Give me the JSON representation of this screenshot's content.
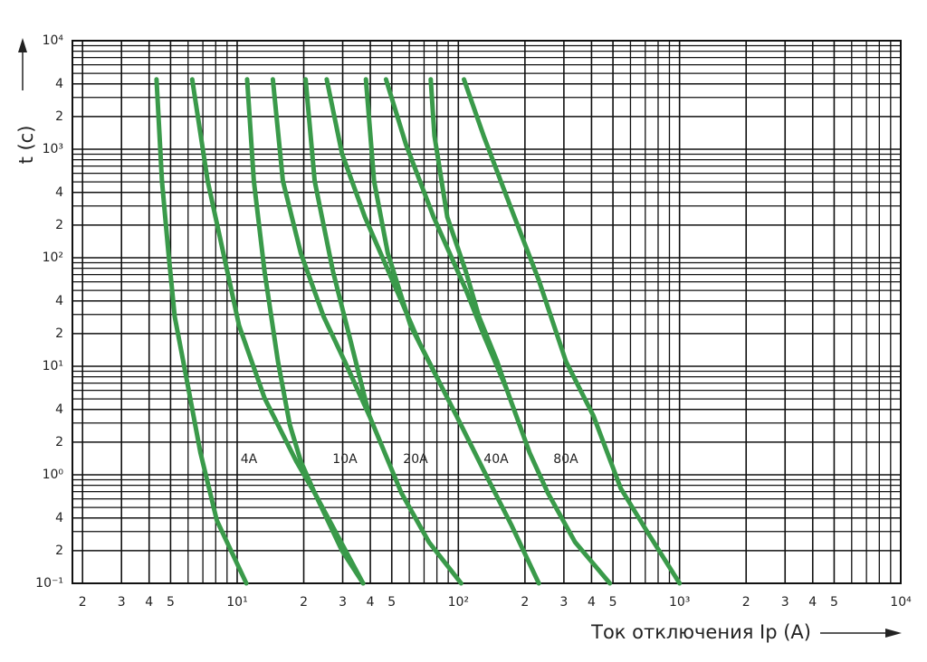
{
  "chart_data": {
    "type": "line",
    "xlabel": "Ток отключения Ip (A)",
    "ylabel": "t (c)",
    "xscale": "log",
    "yscale": "log",
    "grid": true,
    "xlim": [
      1.8,
      10000
    ],
    "ylim": [
      0.1,
      10000
    ],
    "xticks": [
      2,
      3,
      4,
      5,
      {
        "value": 10,
        "label": "10¹"
      },
      {
        "value": 20,
        "label": "2"
      },
      {
        "value": 30,
        "label": "3"
      },
      {
        "value": 40,
        "label": "4"
      },
      {
        "value": 50,
        "label": "5"
      },
      {
        "value": 100,
        "label": "10²"
      },
      {
        "value": 200,
        "label": "2"
      },
      {
        "value": 300,
        "label": "3"
      },
      {
        "value": 400,
        "label": "4"
      },
      {
        "value": 500,
        "label": "5"
      },
      {
        "value": 1000,
        "label": "10³"
      },
      {
        "value": 2000,
        "label": "2"
      },
      {
        "value": 3000,
        "label": "3"
      },
      {
        "value": 4000,
        "label": "4"
      },
      {
        "value": 5000,
        "label": "5"
      },
      {
        "value": 10000,
        "label": "10⁴"
      }
    ],
    "yticks": [
      {
        "value": 0.1,
        "label": "10⁻¹"
      },
      {
        "value": 0.2,
        "label": "2"
      },
      {
        "value": 0.4,
        "label": "4"
      },
      {
        "value": 1,
        "label": "10⁰"
      },
      2,
      4,
      {
        "value": 10,
        "label": "10¹"
      },
      {
        "value": 20,
        "label": "2"
      },
      {
        "value": 40,
        "label": "4"
      },
      {
        "value": 100,
        "label": "10²"
      },
      {
        "value": 200,
        "label": "2"
      },
      {
        "value": 400,
        "label": "4"
      },
      {
        "value": 1000,
        "label": "10³"
      },
      {
        "value": 2000,
        "label": "2"
      },
      {
        "value": 4000,
        "label": "4"
      },
      {
        "value": 10000,
        "label": "10⁴"
      }
    ],
    "annotations": [
      "4A",
      "10A",
      "20A",
      "40A",
      "80A"
    ],
    "series": [
      {
        "color": "#3a9a4a",
        "x": [
          4.32,
          4.57,
          4.89,
          5.22,
          5.92,
          6.82,
          8.09,
          11.0
        ],
        "values": [
          4400,
          510,
          110,
          28.7,
          7.5,
          1.6,
          0.38,
          0.1
        ]
      },
      {
        "color": "#3a9a4a",
        "x": [
          6.26,
          7.36,
          10.2,
          13.3,
          18.5,
          22.4,
          37.1
        ],
        "values": [
          4400,
          510,
          23.7,
          5.1,
          1.33,
          0.68,
          0.1
        ]
      },
      {
        "color": "#3a9a4a",
        "x": [
          11.1,
          11.9,
          13.3,
          15.3,
          17.3,
          19.4,
          22.4,
          29.8,
          37.1
        ],
        "values": [
          4400,
          510,
          75,
          11,
          2.9,
          1.33,
          0.68,
          0.2,
          0.1
        ]
      },
      {
        "color": "#3a9a4a",
        "x": [
          14.5,
          16.1,
          19.4,
          24.6,
          30.7,
          39.6,
          55.3,
          73.6,
          103
        ],
        "values": [
          4400,
          510,
          110,
          28.7,
          11,
          3.5,
          0.68,
          0.24,
          0.1
        ]
      },
      {
        "color": "#3a9a4a",
        "x": [
          20.4,
          22.4,
          27.1,
          32.8,
          37.8,
          39.6
        ],
        "values": [
          4400,
          510,
          75,
          16.2,
          5.1,
          3.5
        ]
      },
      {
        "color": "#3a9a4a",
        "x": [
          25.4,
          29.8,
          37.8,
          50.3,
          66.9,
          81,
          98,
          130,
          173,
          231
        ],
        "values": [
          4400,
          910,
          237,
          62,
          16.2,
          7.5,
          3.5,
          1.1,
          0.35,
          0.1
        ]
      },
      {
        "color": "#3a9a4a",
        "x": [
          38.2,
          41.6,
          48,
          60.8,
          73.6,
          81
        ],
        "values": [
          4400,
          510,
          110,
          23.7,
          11,
          7.5
        ]
      },
      {
        "color": "#3a9a4a",
        "x": [
          47.1,
          58,
          77.3,
          108,
          130,
          165,
          210,
          254,
          337,
          484
        ],
        "values": [
          4400,
          1100,
          237,
          51,
          19.6,
          6.2,
          1.6,
          0.68,
          0.24,
          0.1
        ]
      },
      {
        "color": "#3a9a4a",
        "x": [
          75,
          78,
          89.1,
          108,
          124,
          150,
          165
        ],
        "values": [
          4400,
          1330,
          237,
          75,
          28.7,
          11,
          6.2
        ]
      },
      {
        "color": "#3a9a4a",
        "x": [
          106,
          130,
          173,
          231,
          307,
          408,
          542,
          721,
          1000
        ],
        "values": [
          4400,
          1330,
          287,
          62,
          11,
          3.5,
          0.75,
          0.29,
          0.1
        ]
      }
    ]
  }
}
